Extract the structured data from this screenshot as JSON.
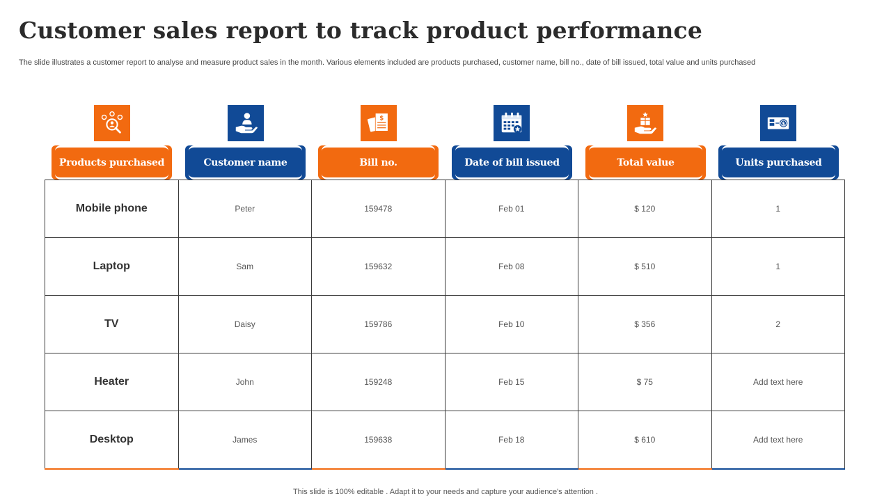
{
  "title": "Customer sales report to track product performance",
  "subtitle": "The slide illustrates a customer report to analyse and measure product sales in the month. Various elements included are products purchased, customer name, bill no., date of bill issued, total value and units purchased",
  "colors": {
    "orange": "#f26a10",
    "blue": "#114a96"
  },
  "columns": [
    {
      "label": "Products purchased",
      "icon": "product-search-icon",
      "color": "orange"
    },
    {
      "label": "Customer name",
      "icon": "hand-user-icon",
      "color": "blue"
    },
    {
      "label": "Bill no.",
      "icon": "bill-receipt-icon",
      "color": "orange"
    },
    {
      "label": "Date of bill issued",
      "icon": "calendar-icon",
      "color": "blue"
    },
    {
      "label": "Total value",
      "icon": "hand-box-icon",
      "color": "orange"
    },
    {
      "label": "Units purchased",
      "icon": "ticket-coin-icon",
      "color": "blue"
    }
  ],
  "rows": [
    {
      "product": "Mobile phone",
      "customer": "Peter",
      "bill": "159478",
      "date": "Feb 01",
      "total": "$ 120",
      "units": "1"
    },
    {
      "product": "Laptop",
      "customer": "Sam",
      "bill": "159632",
      "date": "Feb 08",
      "total": "$ 510",
      "units": "1"
    },
    {
      "product": "TV",
      "customer": "Daisy",
      "bill": "159786",
      "date": "Feb 10",
      "total": "$ 356",
      "units": "2"
    },
    {
      "product": "Heater",
      "customer": "John",
      "bill": "159248",
      "date": "Feb 15",
      "total": "$ 75",
      "units": "Add text here"
    },
    {
      "product": "Desktop",
      "customer": "James",
      "bill": "159638",
      "date": "Feb 18",
      "total": "$ 610",
      "units": "Add text here"
    }
  ],
  "footer": "This slide is 100% editable . Adapt it to your needs and capture your audience's attention ."
}
